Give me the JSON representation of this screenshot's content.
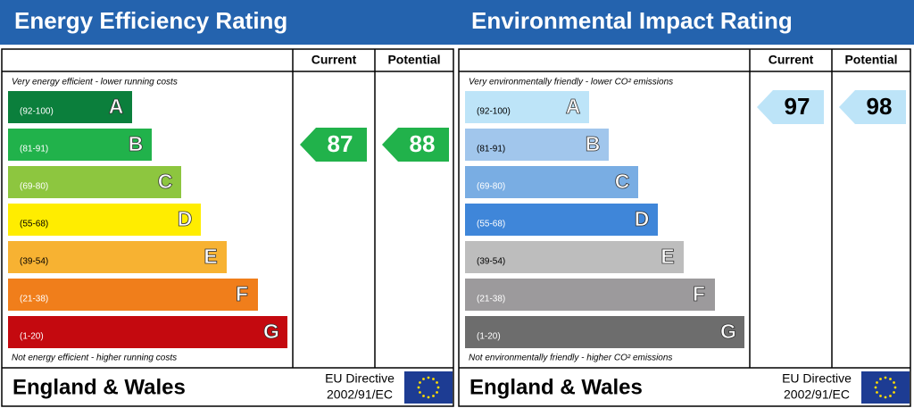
{
  "panels": [
    {
      "title": "Energy Efficiency Rating",
      "columns": [
        "Current",
        "Potential"
      ],
      "top_note": "Very energy efficient - lower running costs",
      "bottom_note": "Not energy efficient - higher running costs",
      "bands": [
        {
          "range": "(92-100)",
          "letter": "A",
          "color": "#0b7f3c"
        },
        {
          "range": "(81-91)",
          "letter": "B",
          "color": "#21b24b"
        },
        {
          "range": "(69-80)",
          "letter": "C",
          "color": "#8dc63f"
        },
        {
          "range": "(55-68)",
          "letter": "D",
          "color": "#ffed00"
        },
        {
          "range": "(39-54)",
          "letter": "E",
          "color": "#f7b232"
        },
        {
          "range": "(21-38)",
          "letter": "F",
          "color": "#f07e1b"
        },
        {
          "range": "(1-20)",
          "letter": "G",
          "color": "#c4090f"
        }
      ],
      "current": 87,
      "potential": 88,
      "footer": {
        "region": "England & Wales",
        "directive": "EU Directive",
        "code": "2002/91/EC"
      }
    },
    {
      "title": "Environmental Impact Rating",
      "columns": [
        "Current",
        "Potential"
      ],
      "top_note": "Very environmentally friendly - lower CO² emissions",
      "bottom_note": "Not environmentally friendly - higher CO² emissions",
      "bands": [
        {
          "range": "(92-100)",
          "letter": "A",
          "color": "#bde4f8"
        },
        {
          "range": "(81-91)",
          "letter": "B",
          "color": "#a1c6ec"
        },
        {
          "range": "(69-80)",
          "letter": "C",
          "color": "#79ade3"
        },
        {
          "range": "(55-68)",
          "letter": "D",
          "color": "#3f86d9"
        },
        {
          "range": "(39-54)",
          "letter": "E",
          "color": "#bdbdbd"
        },
        {
          "range": "(21-38)",
          "letter": "F",
          "color": "#9c9a9c"
        },
        {
          "range": "(1-20)",
          "letter": "G",
          "color": "#6d6d6d"
        }
      ],
      "current": 97,
      "potential": 98,
      "footer": {
        "region": "England & Wales",
        "directive": "EU Directive",
        "code": "2002/91/EC"
      }
    }
  ]
}
